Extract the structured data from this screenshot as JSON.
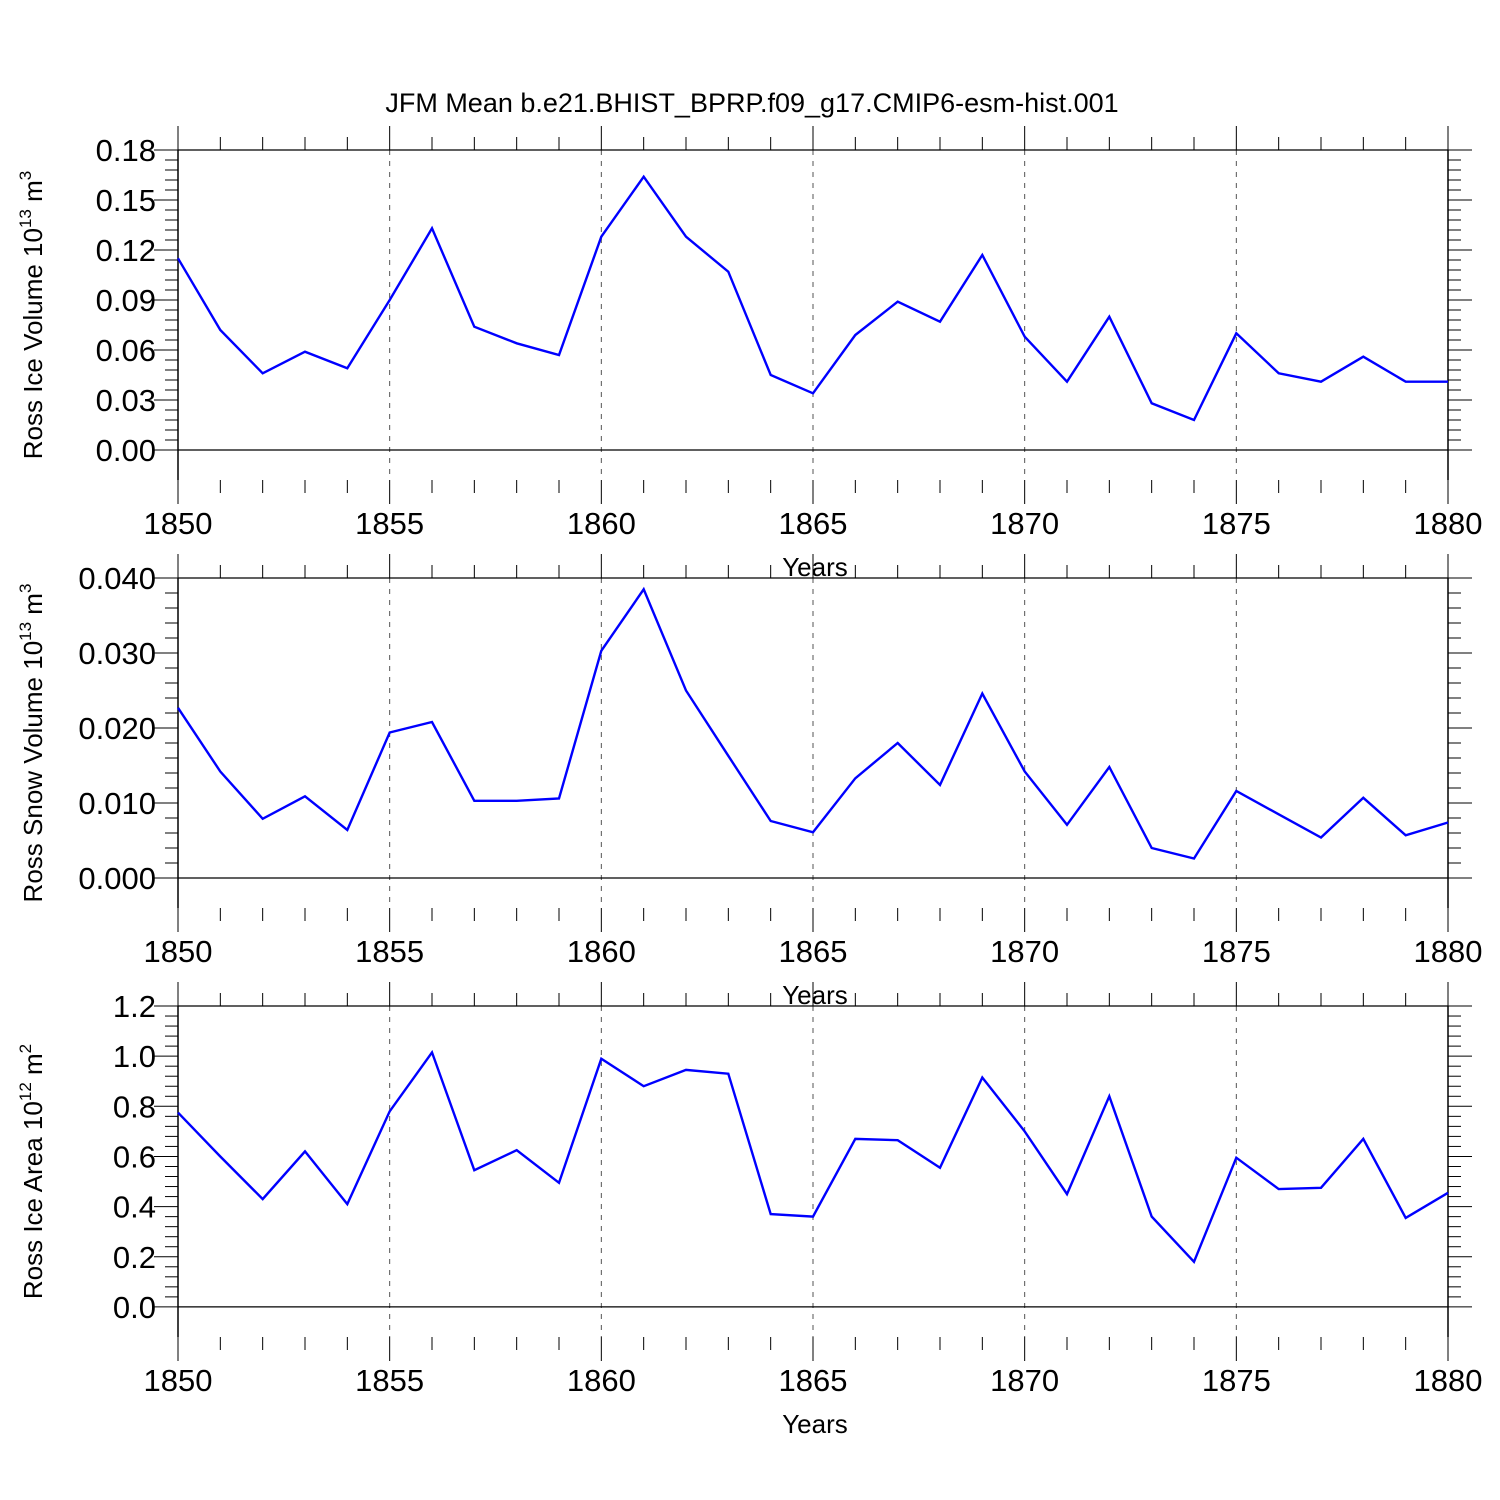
{
  "title": "JFM Mean b.e21.BHIST_BPRP.f09_g17.CMIP6-esm-hist.001",
  "colors": {
    "series": "#0000ff",
    "axis": "#000000",
    "grid": "#555555"
  },
  "chart_data": [
    {
      "type": "line",
      "ylabel": {
        "text": "Ross Ice Volume 10",
        "exp": "13",
        "unit": " m",
        "unit_exp": "3"
      },
      "xlabel": "Years",
      "xlim": [
        1850,
        1880
      ],
      "ylim": [
        -0.018,
        0.18
      ],
      "y_ticks": [
        "0.00",
        "0.03",
        "0.06",
        "0.09",
        "0.12",
        "0.15",
        "0.18"
      ],
      "x_ticks": [
        "1850",
        "1855",
        "1860",
        "1865",
        "1870",
        "1875",
        "1880"
      ],
      "grid": "x-dashed",
      "series": [
        {
          "name": "Ross Ice Volume",
          "x": [
            1850,
            1851,
            1852,
            1853,
            1854,
            1855,
            1856,
            1857,
            1858,
            1859,
            1860,
            1861,
            1862,
            1863,
            1864,
            1865,
            1866,
            1867,
            1868,
            1869,
            1870,
            1871,
            1872,
            1873,
            1874,
            1875,
            1876,
            1877,
            1878,
            1879,
            1880
          ],
          "values": [
            0.115,
            0.072,
            0.046,
            0.059,
            0.049,
            0.09,
            0.133,
            0.074,
            0.064,
            0.057,
            0.128,
            0.164,
            0.128,
            0.107,
            0.045,
            0.034,
            0.069,
            0.089,
            0.077,
            0.117,
            0.068,
            0.041,
            0.08,
            0.028,
            0.018,
            0.07,
            0.046,
            0.041,
            0.056,
            0.041,
            0.041
          ]
        }
      ]
    },
    {
      "type": "line",
      "ylabel": {
        "text": "Ross Snow Volume 10",
        "exp": "13",
        "unit": " m",
        "unit_exp": "3"
      },
      "xlabel": "Years",
      "xlim": [
        1850,
        1880
      ],
      "ylim": [
        -0.004,
        0.04
      ],
      "y_ticks": [
        "0.000",
        "0.010",
        "0.020",
        "0.030",
        "0.040"
      ],
      "x_ticks": [
        "1850",
        "1855",
        "1860",
        "1865",
        "1870",
        "1875",
        "1880"
      ],
      "grid": "x-dashed",
      "series": [
        {
          "name": "Ross Snow Volume",
          "x": [
            1850,
            1851,
            1852,
            1853,
            1854,
            1855,
            1856,
            1857,
            1858,
            1859,
            1860,
            1861,
            1862,
            1863,
            1864,
            1865,
            1866,
            1867,
            1868,
            1869,
            1870,
            1871,
            1872,
            1873,
            1874,
            1875,
            1876,
            1877,
            1878,
            1879,
            1880
          ],
          "values": [
            0.0227,
            0.0142,
            0.0079,
            0.0109,
            0.0064,
            0.0194,
            0.0208,
            0.0103,
            0.0103,
            0.0106,
            0.0303,
            0.0385,
            0.025,
            0.0163,
            0.0076,
            0.0061,
            0.0133,
            0.018,
            0.0124,
            0.0246,
            0.0142,
            0.0071,
            0.0148,
            0.004,
            0.0026,
            0.0116,
            0.0085,
            0.0054,
            0.0107,
            0.0057,
            0.0074
          ]
        }
      ]
    },
    {
      "type": "line",
      "ylabel": {
        "text": "Ross Ice Area 10",
        "exp": "12",
        "unit": " m",
        "unit_exp": "2"
      },
      "xlabel": "Years",
      "xlim": [
        1850,
        1880
      ],
      "ylim": [
        -0.12,
        1.2
      ],
      "y_ticks": [
        "0.0",
        "0.2",
        "0.4",
        "0.6",
        "0.8",
        "1.0",
        "1.2"
      ],
      "x_ticks": [
        "1850",
        "1855",
        "1860",
        "1865",
        "1870",
        "1875",
        "1880"
      ],
      "grid": "x-dashed",
      "series": [
        {
          "name": "Ross Ice Area",
          "x": [
            1850,
            1851,
            1852,
            1853,
            1854,
            1855,
            1856,
            1857,
            1858,
            1859,
            1860,
            1861,
            1862,
            1863,
            1864,
            1865,
            1866,
            1867,
            1868,
            1869,
            1870,
            1871,
            1872,
            1873,
            1874,
            1875,
            1876,
            1877,
            1878,
            1879,
            1880
          ],
          "values": [
            0.775,
            0.6,
            0.43,
            0.62,
            0.41,
            0.78,
            1.015,
            0.545,
            0.625,
            0.495,
            0.99,
            0.88,
            0.945,
            0.93,
            0.37,
            0.36,
            0.67,
            0.665,
            0.555,
            0.915,
            0.7,
            0.45,
            0.84,
            0.36,
            0.18,
            0.595,
            0.47,
            0.475,
            0.67,
            0.355,
            0.455
          ]
        }
      ]
    }
  ]
}
